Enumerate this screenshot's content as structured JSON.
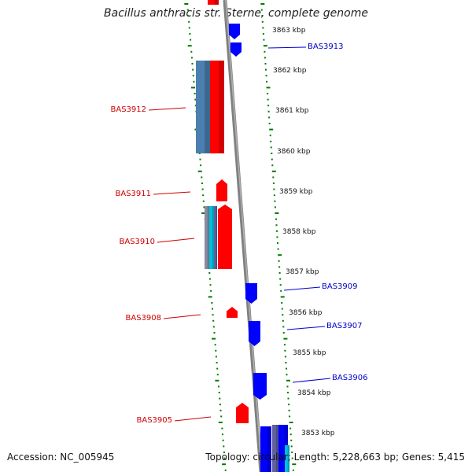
{
  "header": {
    "title": "Bacillus anthracis str. Sterne, complete genome"
  },
  "footer": {
    "accession": "Accession: NC_005945",
    "summary": "Topology: circular; Length: 5,228,663 bp; Genes: 5,415"
  },
  "colors": {
    "forward_gene": "#ff0000",
    "reverse_gene": "#0000ff",
    "forward_label": "#cc0000",
    "reverse_label": "#0000cc",
    "backbone": "#808080",
    "tick": "#007a00",
    "orf_steel": "#4a7fb0",
    "orf_cyan": "#00c0e0"
  },
  "scale_labels": [
    "3863 kbp",
    "3862 kbp",
    "3861 kbp",
    "3860 kbp",
    "3859 kbp",
    "3858 kbp",
    "3857 kbp",
    "3856 kbp",
    "3855 kbp",
    "3854 kbp",
    "3853 kbp"
  ],
  "gene_labels_forward": [
    "BAS3912",
    "BAS3911",
    "BAS3910",
    "BAS3908",
    "BAS3905"
  ],
  "gene_labels_reverse": [
    "BAS3913",
    "BAS3909",
    "BAS3907",
    "BAS3906"
  ]
}
